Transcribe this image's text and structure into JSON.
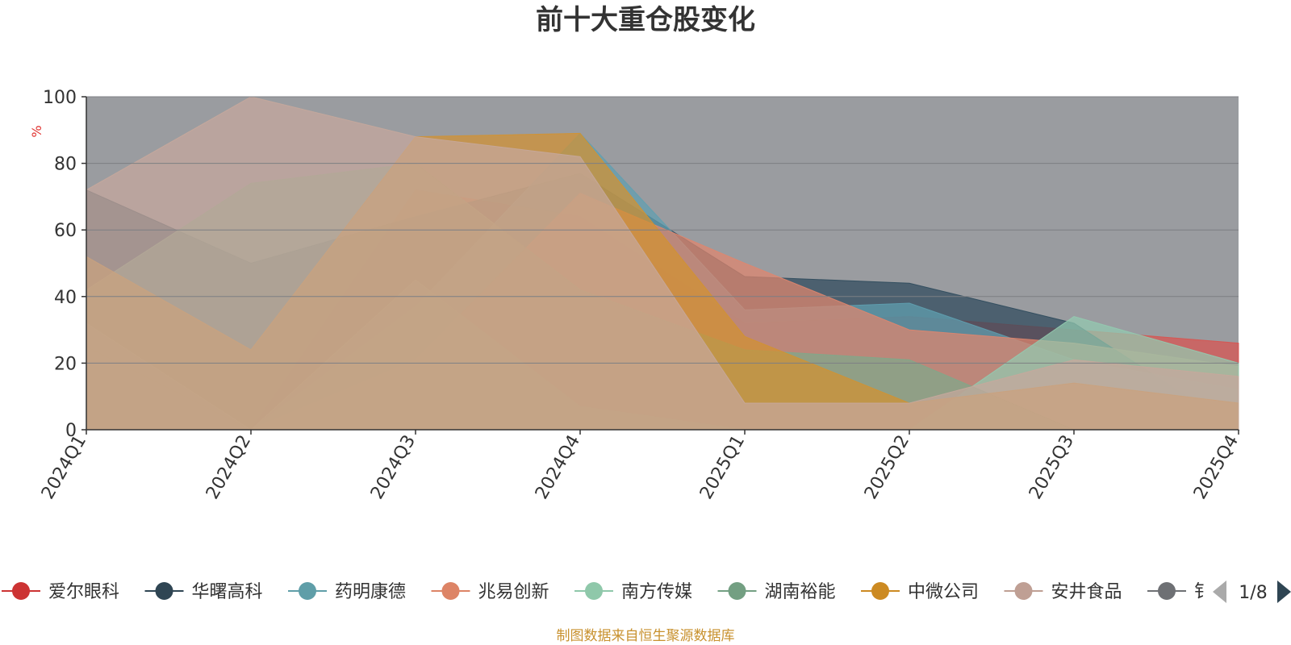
{
  "chart_data": {
    "type": "area",
    "title": "前十大重仓股变化",
    "ylabel": "%",
    "ylim": [
      0,
      100
    ],
    "yticks": [
      "0",
      "20",
      "40",
      "60",
      "80",
      "100"
    ],
    "categories": [
      "2024Q1",
      "2024Q2",
      "2024Q3",
      "2024Q4",
      "2025Q1",
      "2025Q2",
      "2025Q3",
      "2025Q4"
    ],
    "series": [
      {
        "name": "爱尔眼科",
        "color": "#d9534f",
        "values": [
          25,
          0,
          72,
          64,
          32,
          34,
          30,
          26
        ]
      },
      {
        "name": "华曙高科",
        "color": "#2e4a5c",
        "values": [
          72,
          50,
          64,
          77,
          46,
          44,
          32,
          0
        ]
      },
      {
        "name": "药明康德",
        "color": "#5fa0b0",
        "values": [
          0,
          0,
          37,
          89,
          36,
          38,
          21,
          12
        ]
      },
      {
        "name": "兆易创新",
        "color": "#e0866e",
        "values": [
          0,
          0,
          21,
          71,
          50,
          30,
          26,
          19
        ]
      },
      {
        "name": "南方传媒",
        "color": "#93cbb0",
        "values": [
          32,
          0,
          45,
          7,
          0,
          0,
          34,
          20
        ]
      },
      {
        "name": "湖南裕能",
        "color": "#7fa98a",
        "values": [
          42,
          74,
          80,
          42,
          24,
          21,
          0,
          0
        ]
      },
      {
        "name": "中微公司",
        "color": "#d39230",
        "values": [
          52,
          24,
          88,
          89,
          28,
          8,
          14,
          8
        ]
      },
      {
        "name": "安井食品",
        "color": "#c6a89c",
        "values": [
          72,
          100,
          88,
          82,
          8,
          8,
          21,
          16
        ]
      }
    ]
  },
  "legend": {
    "items": [
      {
        "name": "爱尔眼科",
        "color": "#cc3333"
      },
      {
        "name": "华曙高科",
        "color": "#2f4553"
      },
      {
        "name": "药明康德",
        "color": "#5f9ea8"
      },
      {
        "name": "兆易创新",
        "color": "#dd8466"
      },
      {
        "name": "南方传媒",
        "color": "#8fc8aa"
      },
      {
        "name": "湖南裕能",
        "color": "#739f82"
      },
      {
        "name": "中微公司",
        "color": "#cc8a22"
      },
      {
        "name": "安井食品",
        "color": "#bf9f94"
      },
      {
        "name": "",
        "color": "#6e7074"
      }
    ],
    "partial_text": "钅",
    "page": "1/8",
    "prev_icon": "triangle-left-icon",
    "next_icon": "triangle-right-icon"
  },
  "source": "制图数据来自恒生聚源数据库",
  "colors": {
    "plot_background": "#9a9ca0",
    "title": "#333333",
    "unit": "#e0322f",
    "source": "#c8912e"
  }
}
